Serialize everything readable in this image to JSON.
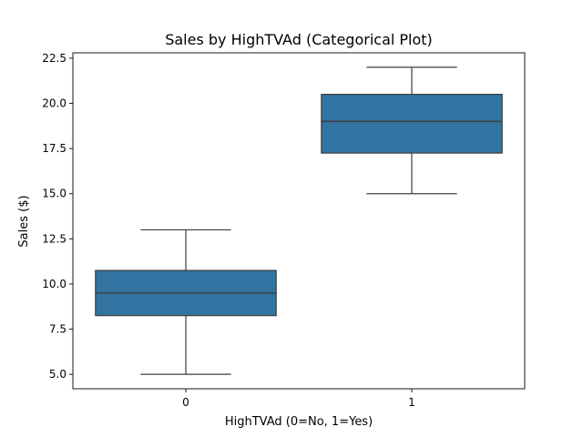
{
  "chart_data": {
    "type": "box",
    "title": "Sales by HighTVAd (Categorical Plot)",
    "xlabel": "HighTVAd (0=No, 1=Yes)",
    "ylabel": "Sales ($)",
    "categories": [
      "0",
      "1"
    ],
    "boxes": [
      {
        "category": "0",
        "whisker_low": 5.0,
        "q1": 8.25,
        "median": 9.5,
        "q3": 10.75,
        "whisker_high": 13.0
      },
      {
        "category": "1",
        "whisker_low": 15.0,
        "q1": 17.25,
        "median": 19.0,
        "q3": 20.5,
        "whisker_high": 22.0
      }
    ],
    "ylim": [
      4.2,
      22.8
    ],
    "yticks": [
      5.0,
      7.5,
      10.0,
      12.5,
      15.0,
      17.5,
      20.0,
      22.5
    ],
    "ytick_labels": [
      "5.0",
      "7.5",
      "10.0",
      "12.5",
      "15.0",
      "17.5",
      "20.0",
      "22.5"
    ],
    "box_color": "#3274a1",
    "line_color": "#3d3d3d",
    "grid": false
  }
}
